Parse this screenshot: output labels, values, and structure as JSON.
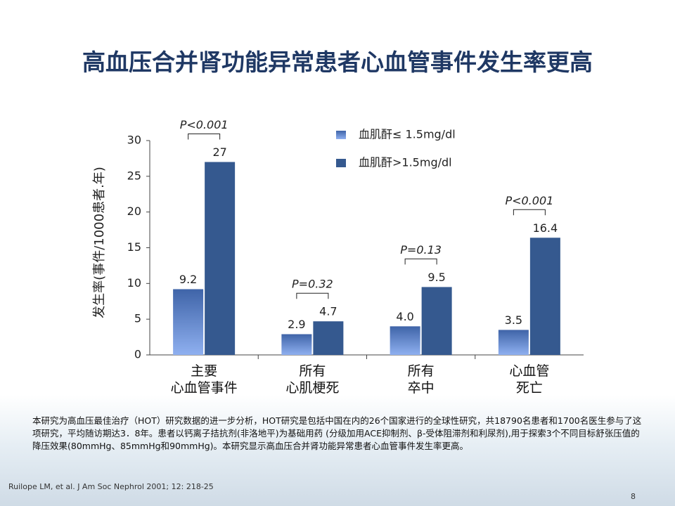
{
  "title": "高血压合并肾功能异常患者心血管事件发生率更高",
  "chart_data": {
    "type": "bar",
    "ylabel": "发生率(事件/1000患者.年)",
    "categories": [
      "主要\n心血管事件",
      "所有\n心肌梗死",
      "所有\n卒中",
      "心血管\n死亡"
    ],
    "series": [
      {
        "name": "血肌酐≤ 1.5mg/dl",
        "color": "#6f93d8",
        "values": [
          9.2,
          2.9,
          4.0,
          3.5
        ],
        "value_labels": [
          "9.2",
          "2.9",
          "4.0",
          "3.5"
        ]
      },
      {
        "name": "血肌酐>1.5mg/dl",
        "color": "#35598f",
        "values": [
          27,
          4.7,
          9.5,
          16.4
        ]
      }
    ],
    "annotations": [
      "P<0.001",
      "P=0.32",
      "P=0.13",
      "P<0.001"
    ],
    "ylim": [
      0,
      30
    ],
    "yticks": [
      0,
      5,
      10,
      15,
      20,
      25,
      30
    ]
  },
  "footnote": "本研究为高血压最佳治疗（HOT）研究数据的进一步分析，HOT研究是包括中国在内的26个国家进行的全球性研究，共18790名患者和1700名医生参与了这项研究，平均随访期达3．8年。患者以钙离子拮抗剂(非洛地平)为基础用药 (分级加用ACE抑制剂、β-受体阻滞剂和利尿剂),用于探索3个不同目标舒张压值的降压效果(80mmHg、85mmHg和90mmHg)。本研究显示高血压合并肾功能异常患者心血管事件发生率更高。",
  "citation": "Ruilope LM, et al. J Am Soc Nephrol 2001; 12: 218-25",
  "page_number": "8"
}
